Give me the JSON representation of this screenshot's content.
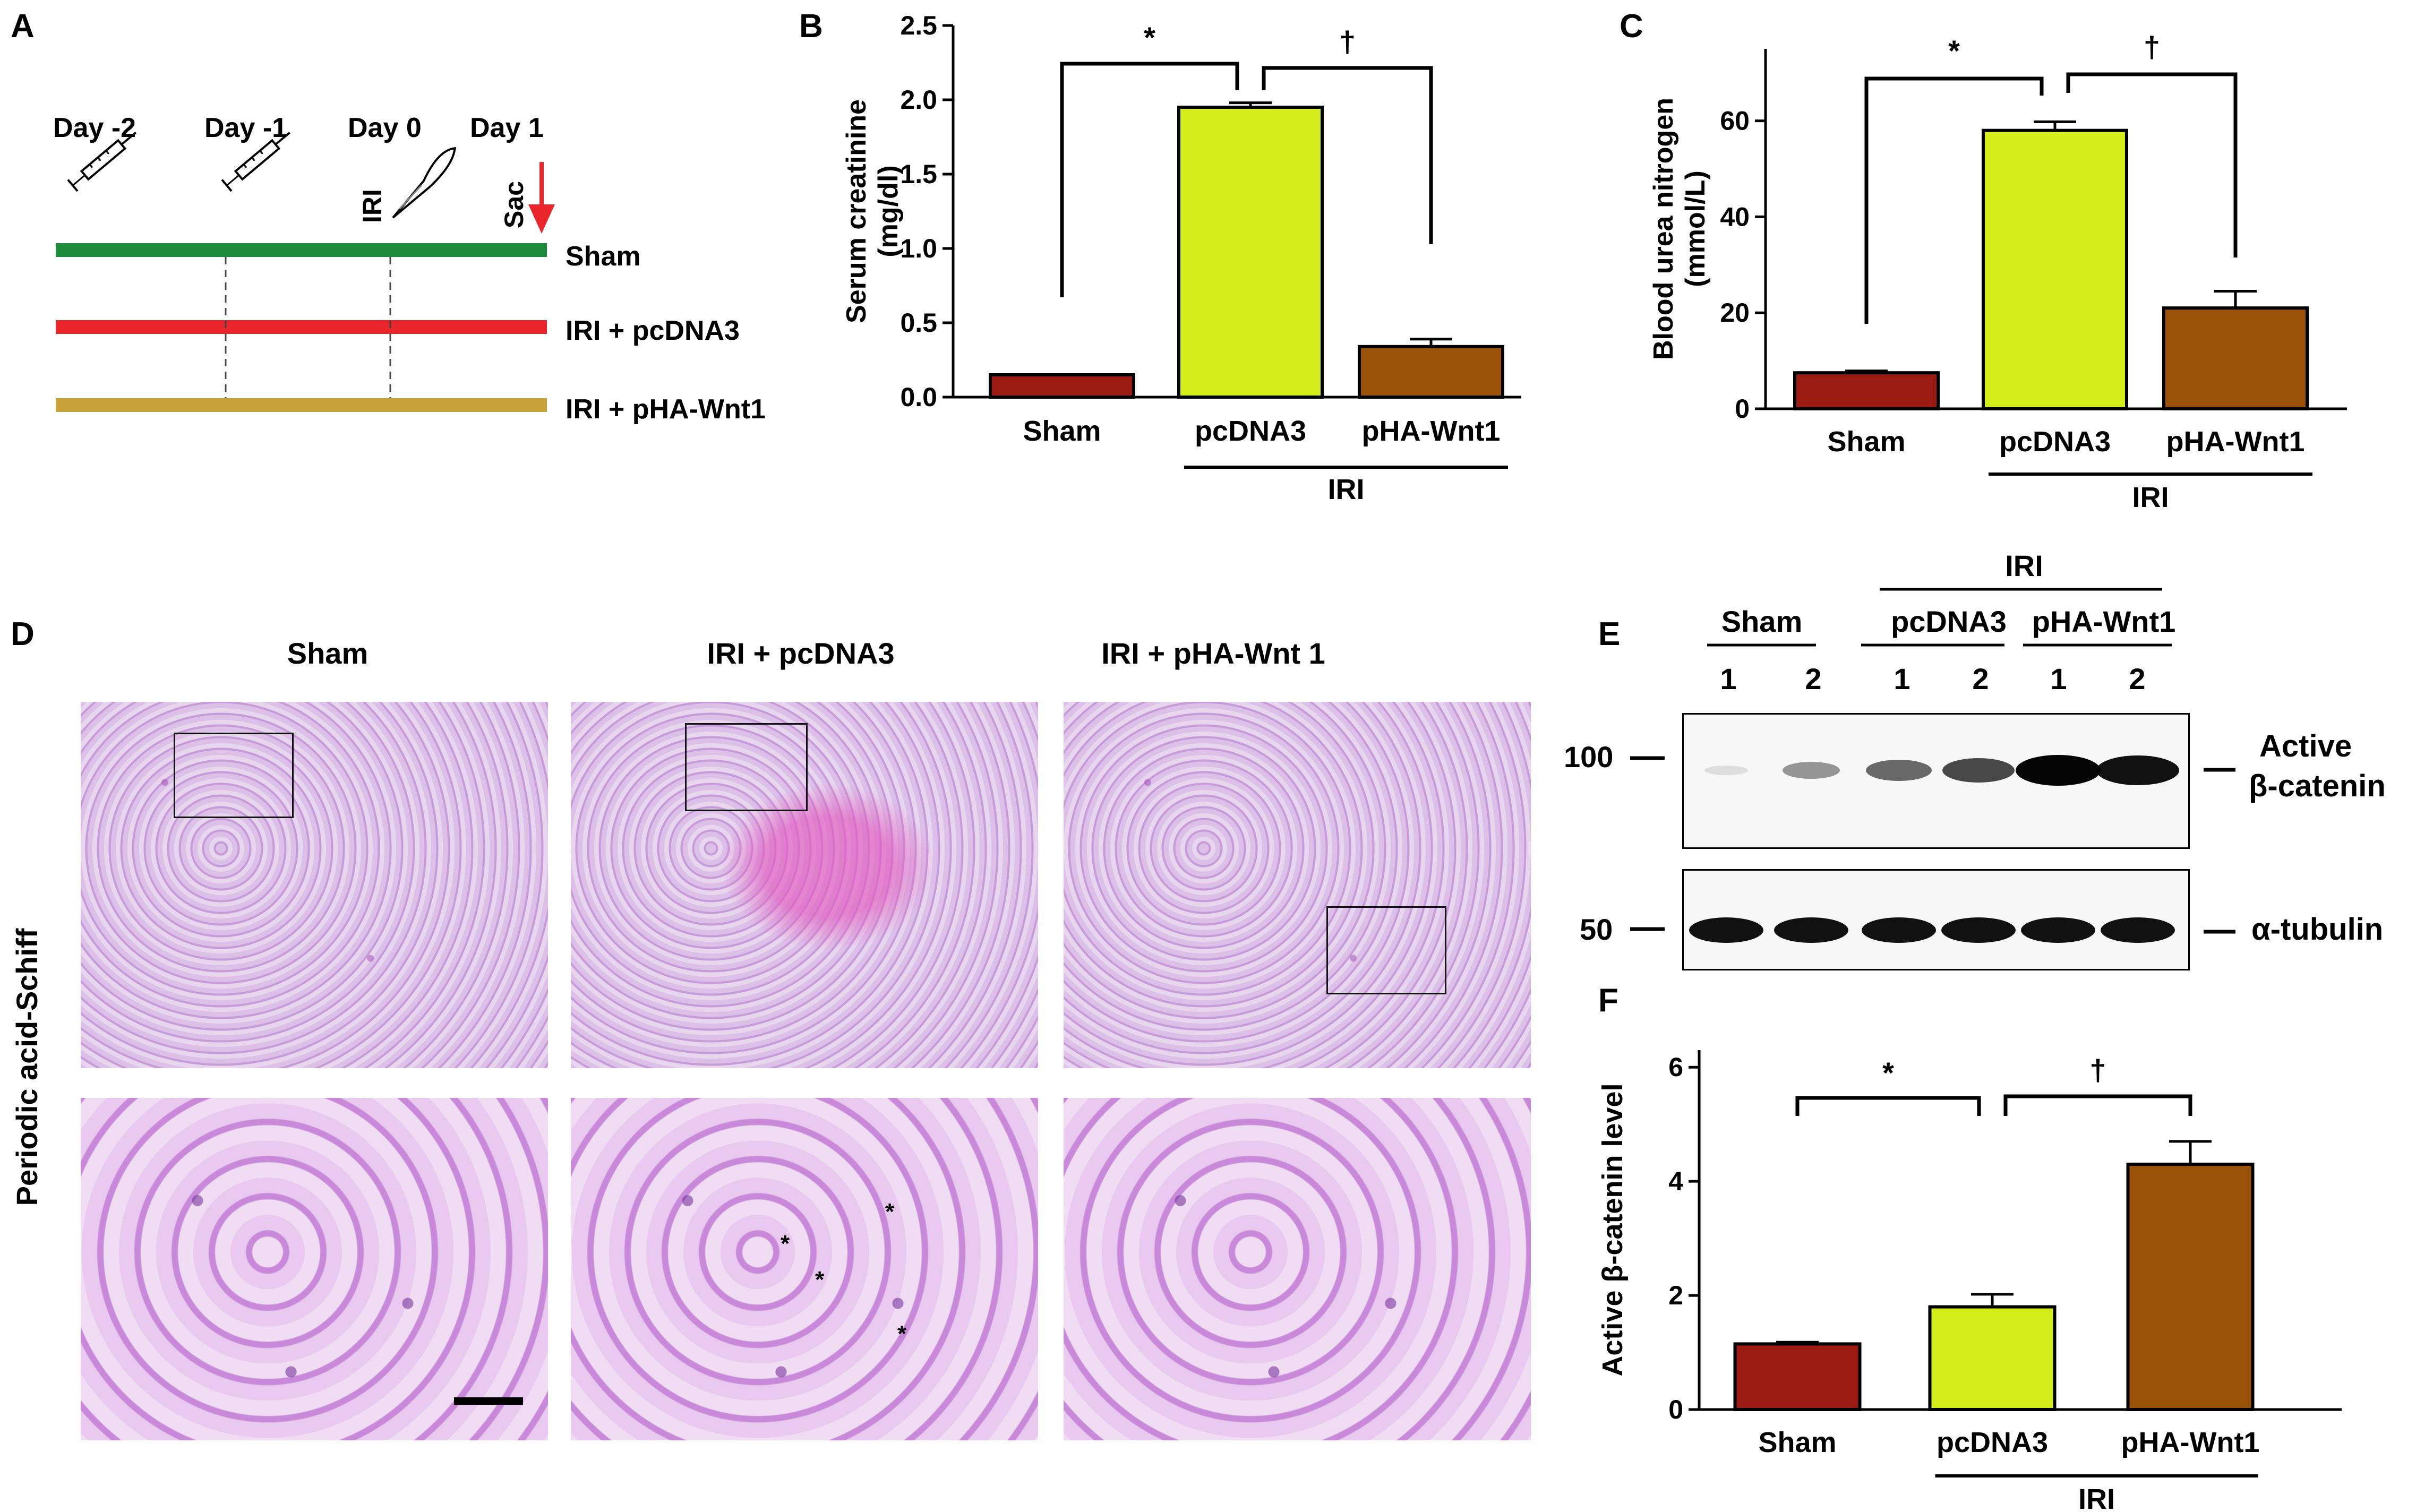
{
  "panel_letters": {
    "a": "A",
    "b": "B",
    "c": "C",
    "d": "D",
    "e": "E",
    "f": "F"
  },
  "panel_a": {
    "days": [
      "Day -2",
      "Day -1",
      "Day 0",
      "Day 1"
    ],
    "iri_label": "IRI",
    "sac_label": "Sac",
    "groups": [
      {
        "label": "Sham",
        "color": "#1e8b3c"
      },
      {
        "label": "IRI + pcDNA3",
        "color": "#e8262c"
      },
      {
        "label": "IRI + pHA-Wnt1",
        "color": "#c8a238"
      }
    ],
    "arrow_color": "#e8262c",
    "icons": [
      "syringe-icon",
      "syringe-icon",
      "scalpel-icon",
      "arrow-down-icon"
    ]
  },
  "chart_data": [
    {
      "id": "B",
      "type": "bar",
      "categories": [
        "Sham",
        "pcDNA3",
        "pHA-Wnt1"
      ],
      "values": [
        0.15,
        1.95,
        0.34
      ],
      "errors": [
        0.0,
        0.03,
        0.05
      ],
      "colors": [
        "#9b1a12",
        "#d4ee1c",
        "#9a5208"
      ],
      "ylabel": "Serum creatinine (mg/dl)",
      "ylim": [
        0,
        2.5
      ],
      "yticks": [
        "0.0",
        "0.5",
        "1.0",
        "1.5",
        "2.0",
        "2.5"
      ],
      "group_label": "IRI",
      "significance": [
        "*",
        "†"
      ]
    },
    {
      "id": "C",
      "type": "bar",
      "categories": [
        "Sham",
        "pcDNA3",
        "pHA-Wnt1"
      ],
      "values": [
        7.5,
        58,
        21
      ],
      "errors": [
        0.4,
        1.8,
        3.5
      ],
      "colors": [
        "#9b1a12",
        "#d4ee1c",
        "#9a5208"
      ],
      "ylabel": "Blood urea nitrogen (mmol/L)",
      "ylim": [
        0,
        75
      ],
      "yticks": [
        "0",
        "20",
        "40",
        "60"
      ],
      "group_label": "IRI",
      "significance": [
        "*",
        "†"
      ]
    },
    {
      "id": "F",
      "type": "bar",
      "categories": [
        "Sham",
        "pcDNA3",
        "pHA-Wnt1"
      ],
      "values": [
        1.15,
        1.8,
        4.3
      ],
      "errors": [
        0.03,
        0.22,
        0.4
      ],
      "colors": [
        "#9b1a12",
        "#d4ee1c",
        "#9a5208"
      ],
      "ylabel": "Active β-catenin level",
      "ylim": [
        0,
        6.3
      ],
      "yticks": [
        "0",
        "2",
        "4",
        "6"
      ],
      "group_label": "IRI",
      "significance": [
        "*",
        "†"
      ]
    }
  ],
  "panel_d": {
    "columns": [
      "Sham",
      "IRI + pcDNA3",
      "IRI + pHA-Wnt 1"
    ],
    "row_label": "Periodic acid-Schiff",
    "asterisk": "*"
  },
  "panel_e": {
    "iri_label": "IRI",
    "groups": [
      "Sham",
      "pcDNA3",
      "pHA-Wnt1"
    ],
    "lanes": [
      "1",
      "2",
      "1",
      "2",
      "1",
      "2"
    ],
    "markers": [
      "100",
      "50"
    ],
    "band_labels": [
      "Active",
      "β-catenin",
      "α-tubulin"
    ],
    "band_intensity": [
      0.02,
      0.35,
      0.55,
      0.7,
      1.0,
      0.95
    ]
  }
}
